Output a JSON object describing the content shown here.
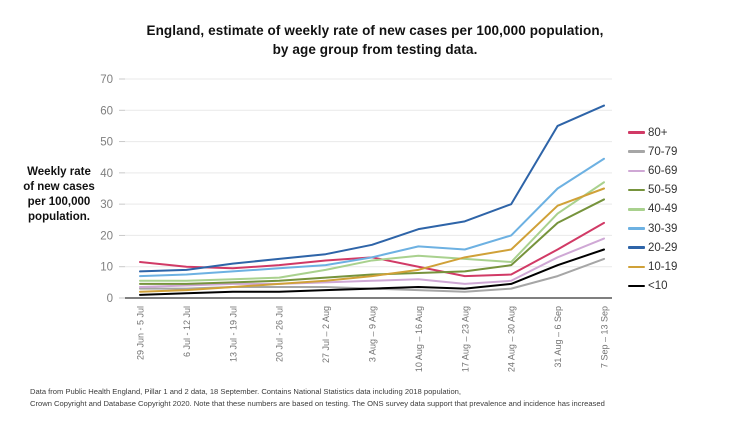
{
  "title": {
    "line1": "England, estimate of weekly rate of new cases per 100,000 population,",
    "line2": "by age group from testing data."
  },
  "y_axis_title": "Weekly rate\nof new cases\nper 100,000\npopulation.",
  "footer": {
    "line1": "Data from Public Health England, Pillar 1 and 2 data, 18 September.  Contains National Statistics data including 2018 population,",
    "line2": "Crown Copyright and Database Copyright 2020. Note that these numbers are based on testing. The ONS survey data support that prevalence and incidence has increased"
  },
  "chart_data": {
    "type": "line",
    "title": "England, estimate of weekly rate of new cases per 100,000 population, by age group from testing data.",
    "xlabel": "",
    "ylabel": "Weekly rate of new cases per 100,000 population.",
    "ylim": [
      0,
      70
    ],
    "yticks": [
      0,
      10,
      20,
      30,
      40,
      50,
      60,
      70
    ],
    "grid": true,
    "legend_position": "right",
    "categories": [
      "29 Jun - 5 Jul",
      "6 Jul - 12 Jul",
      "13 Jul - 19 Jul",
      "20 Jul - 26 Jul",
      "27 Jul – 2 Aug",
      "3 Aug – 9 Aug",
      "10 Aug – 16 Aug",
      "17 Aug – 23 Aug",
      "24 Aug – 30 Aug",
      "31 Aug – 6 Sep",
      "7 Sep – 13 Sep"
    ],
    "series": [
      {
        "name": "80+",
        "color": "#d13a66",
        "values": [
          11.5,
          10,
          9.5,
          10.5,
          12,
          13,
          10,
          7,
          7.5,
          15.5,
          24
        ]
      },
      {
        "name": "70-79",
        "color": "#a6a6a6",
        "values": [
          3,
          3,
          3.5,
          3.5,
          3.5,
          3,
          2.5,
          2,
          3,
          7,
          12.5
        ]
      },
      {
        "name": "60-69",
        "color": "#cfa8d5",
        "values": [
          3.5,
          4,
          4.5,
          4.5,
          5,
          5.5,
          6,
          4.5,
          5.5,
          13,
          19
        ]
      },
      {
        "name": "50-59",
        "color": "#76933c",
        "values": [
          4.5,
          4.5,
          5,
          5.5,
          6.5,
          7.5,
          8,
          8.5,
          10.5,
          24,
          31.5
        ]
      },
      {
        "name": "40-49",
        "color": "#a9d18e",
        "values": [
          5.5,
          5.5,
          6,
          6.5,
          9,
          12,
          13.5,
          12.5,
          11.5,
          27,
          37
        ]
      },
      {
        "name": "30-39",
        "color": "#6db1e2",
        "values": [
          7,
          7.5,
          8.5,
          9.5,
          10.5,
          13,
          16.5,
          15.5,
          20,
          35,
          44.5
        ]
      },
      {
        "name": "20-29",
        "color": "#2e64a8",
        "values": [
          8.5,
          9,
          11,
          12.5,
          14,
          17,
          22,
          24.5,
          30,
          55,
          61.5
        ]
      },
      {
        "name": "10-19",
        "color": "#d0a138",
        "values": [
          2,
          2.5,
          3.5,
          4.5,
          5.5,
          7,
          9,
          13,
          15.5,
          29.5,
          35
        ]
      },
      {
        "name": "<10",
        "color": "#000000",
        "values": [
          1,
          1.5,
          2,
          2,
          2.5,
          3,
          3.5,
          3,
          4.5,
          10.5,
          15.5
        ]
      }
    ]
  },
  "colors": {
    "background": "#ffffff",
    "gridline": "#e9e9e9",
    "axis": "#333333",
    "tick_label": "#7f7f7f",
    "x_label": "#737373"
  }
}
